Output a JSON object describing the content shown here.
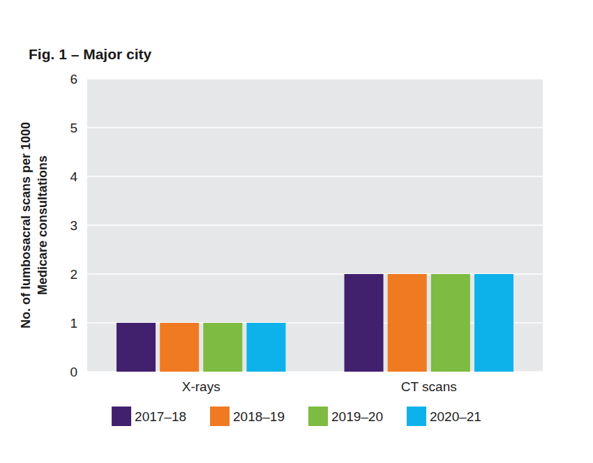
{
  "chart_data": {
    "type": "bar",
    "title": "Fig. 1 – Major city",
    "y_label": "No. of lumbosacral scans per 1000\nMedicare consultations",
    "categories": [
      "X-rays",
      "CT scans"
    ],
    "series": [
      {
        "name": "2017–18",
        "color": "#41206e",
        "values": [
          1,
          2
        ]
      },
      {
        "name": "2018–19",
        "color": "#f07a22",
        "values": [
          1,
          2
        ]
      },
      {
        "name": "2019–20",
        "color": "#7dbb42",
        "values": [
          1,
          2
        ]
      },
      {
        "name": "2020–21",
        "color": "#0db2ea",
        "values": [
          1,
          2
        ]
      }
    ],
    "ylim": [
      0,
      6
    ],
    "yticks": [
      0,
      1,
      2,
      3,
      4,
      5,
      6
    ],
    "grid": true,
    "legend": "bottom"
  }
}
